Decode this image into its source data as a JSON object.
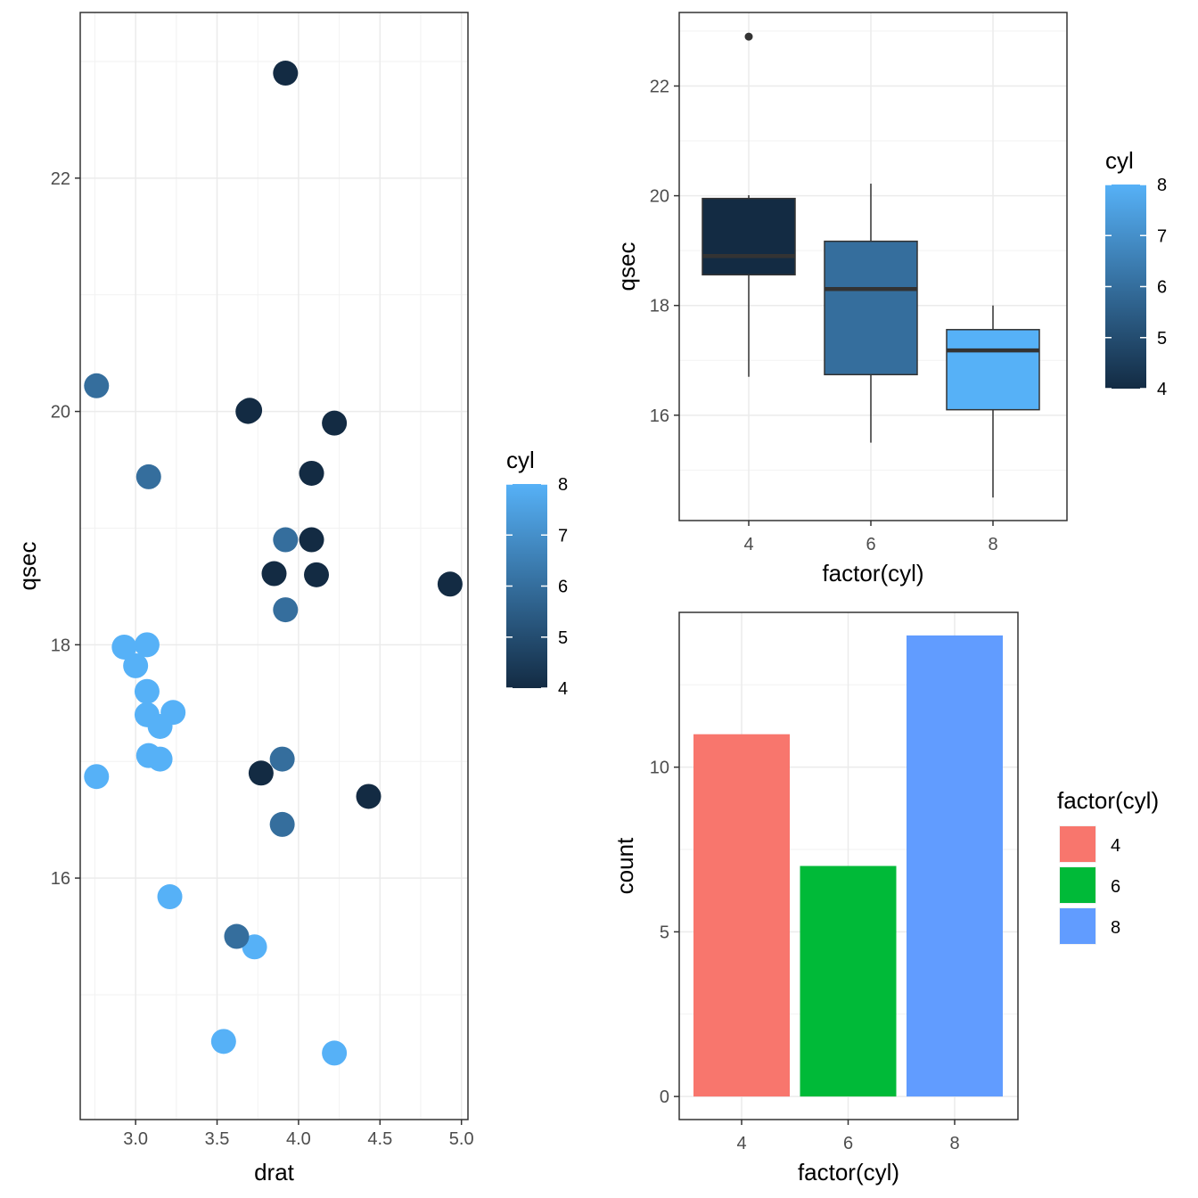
{
  "chart_data": [
    {
      "type": "scatter",
      "xlabel": "drat",
      "ylabel": "qsec",
      "xlim": [
        2.66,
        5.04
      ],
      "ylim": [
        13.93,
        23.42
      ],
      "x_ticks": [
        3.0,
        3.5,
        4.0,
        4.5,
        5.0
      ],
      "x_tick_labels": [
        "3.0",
        "3.5",
        "4.0",
        "4.5",
        "5.0"
      ],
      "y_ticks": [
        16,
        18,
        20,
        22
      ],
      "y_tick_labels": [
        "16",
        "18",
        "20",
        "22"
      ],
      "grid": true,
      "legend": {
        "title": "cyl",
        "type": "colorbar",
        "position": "right",
        "range": [
          4,
          8
        ],
        "ticks": [
          "4",
          "5",
          "6",
          "7",
          "8"
        ],
        "low_color": "#132B43",
        "high_color": "#56B1F7"
      },
      "points": [
        {
          "x": 3.9,
          "y": 16.46,
          "cyl": 6
        },
        {
          "x": 3.9,
          "y": 17.02,
          "cyl": 6
        },
        {
          "x": 3.85,
          "y": 18.61,
          "cyl": 4
        },
        {
          "x": 3.08,
          "y": 19.44,
          "cyl": 6
        },
        {
          "x": 3.15,
          "y": 17.02,
          "cyl": 8
        },
        {
          "x": 2.76,
          "y": 20.22,
          "cyl": 6
        },
        {
          "x": 3.21,
          "y": 15.84,
          "cyl": 8
        },
        {
          "x": 3.69,
          "y": 20.0,
          "cyl": 4
        },
        {
          "x": 3.92,
          "y": 22.9,
          "cyl": 4
        },
        {
          "x": 3.92,
          "y": 18.3,
          "cyl": 6
        },
        {
          "x": 3.92,
          "y": 18.9,
          "cyl": 6
        },
        {
          "x": 3.07,
          "y": 17.4,
          "cyl": 8
        },
        {
          "x": 3.07,
          "y": 17.6,
          "cyl": 8
        },
        {
          "x": 3.07,
          "y": 18.0,
          "cyl": 8
        },
        {
          "x": 2.93,
          "y": 17.98,
          "cyl": 8
        },
        {
          "x": 3.0,
          "y": 17.82,
          "cyl": 8
        },
        {
          "x": 3.23,
          "y": 17.42,
          "cyl": 8
        },
        {
          "x": 4.08,
          "y": 19.47,
          "cyl": 4
        },
        {
          "x": 4.93,
          "y": 18.52,
          "cyl": 4
        },
        {
          "x": 4.22,
          "y": 19.9,
          "cyl": 4
        },
        {
          "x": 3.7,
          "y": 20.01,
          "cyl": 4
        },
        {
          "x": 2.76,
          "y": 16.87,
          "cyl": 8
        },
        {
          "x": 3.15,
          "y": 17.3,
          "cyl": 8
        },
        {
          "x": 3.73,
          "y": 15.41,
          "cyl": 8
        },
        {
          "x": 3.08,
          "y": 17.05,
          "cyl": 8
        },
        {
          "x": 4.08,
          "y": 18.9,
          "cyl": 4
        },
        {
          "x": 4.43,
          "y": 16.7,
          "cyl": 4
        },
        {
          "x": 3.77,
          "y": 16.9,
          "cyl": 4
        },
        {
          "x": 4.22,
          "y": 14.5,
          "cyl": 8
        },
        {
          "x": 3.62,
          "y": 15.5,
          "cyl": 6
        },
        {
          "x": 3.54,
          "y": 14.6,
          "cyl": 8
        },
        {
          "x": 4.11,
          "y": 18.6,
          "cyl": 4
        }
      ]
    },
    {
      "type": "boxplot",
      "xlabel": "factor(cyl)",
      "ylabel": "qsec",
      "categories": [
        "4",
        "6",
        "8"
      ],
      "ylim": [
        14.08,
        23.34
      ],
      "y_ticks": [
        16,
        18,
        20,
        22
      ],
      "y_tick_labels": [
        "16",
        "18",
        "20",
        "22"
      ],
      "grid": true,
      "legend": {
        "title": "cyl",
        "type": "colorbar",
        "position": "right",
        "range": [
          4,
          8
        ],
        "ticks": [
          "4",
          "5",
          "6",
          "7",
          "8"
        ],
        "low_color": "#132B43",
        "high_color": "#56B1F7"
      },
      "boxes": [
        {
          "category": "4",
          "cyl": 4,
          "lower_whisker": 16.7,
          "q1": 18.56,
          "median": 18.9,
          "q3": 19.95,
          "upper_whisker": 20.01,
          "outliers": [
            22.9
          ]
        },
        {
          "category": "6",
          "cyl": 6,
          "lower_whisker": 15.5,
          "q1": 16.74,
          "median": 18.3,
          "q3": 19.17,
          "upper_whisker": 20.22,
          "outliers": []
        },
        {
          "category": "8",
          "cyl": 8,
          "lower_whisker": 14.5,
          "q1": 16.1,
          "median": 17.18,
          "q3": 17.56,
          "upper_whisker": 18.0,
          "outliers": []
        }
      ]
    },
    {
      "type": "bar",
      "xlabel": "factor(cyl)",
      "ylabel": "count",
      "categories": [
        "4",
        "6",
        "8"
      ],
      "values": [
        11,
        7,
        14
      ],
      "colors": [
        "#F8766D",
        "#00BA38",
        "#619CFF"
      ],
      "ylim": [
        -0.7,
        14.7
      ],
      "y_ticks": [
        0,
        5,
        10
      ],
      "y_tick_labels": [
        "0",
        "5",
        "10"
      ],
      "grid": true,
      "legend": {
        "title": "factor(cyl)",
        "position": "right",
        "labels": [
          "4",
          "6",
          "8"
        ]
      }
    }
  ]
}
